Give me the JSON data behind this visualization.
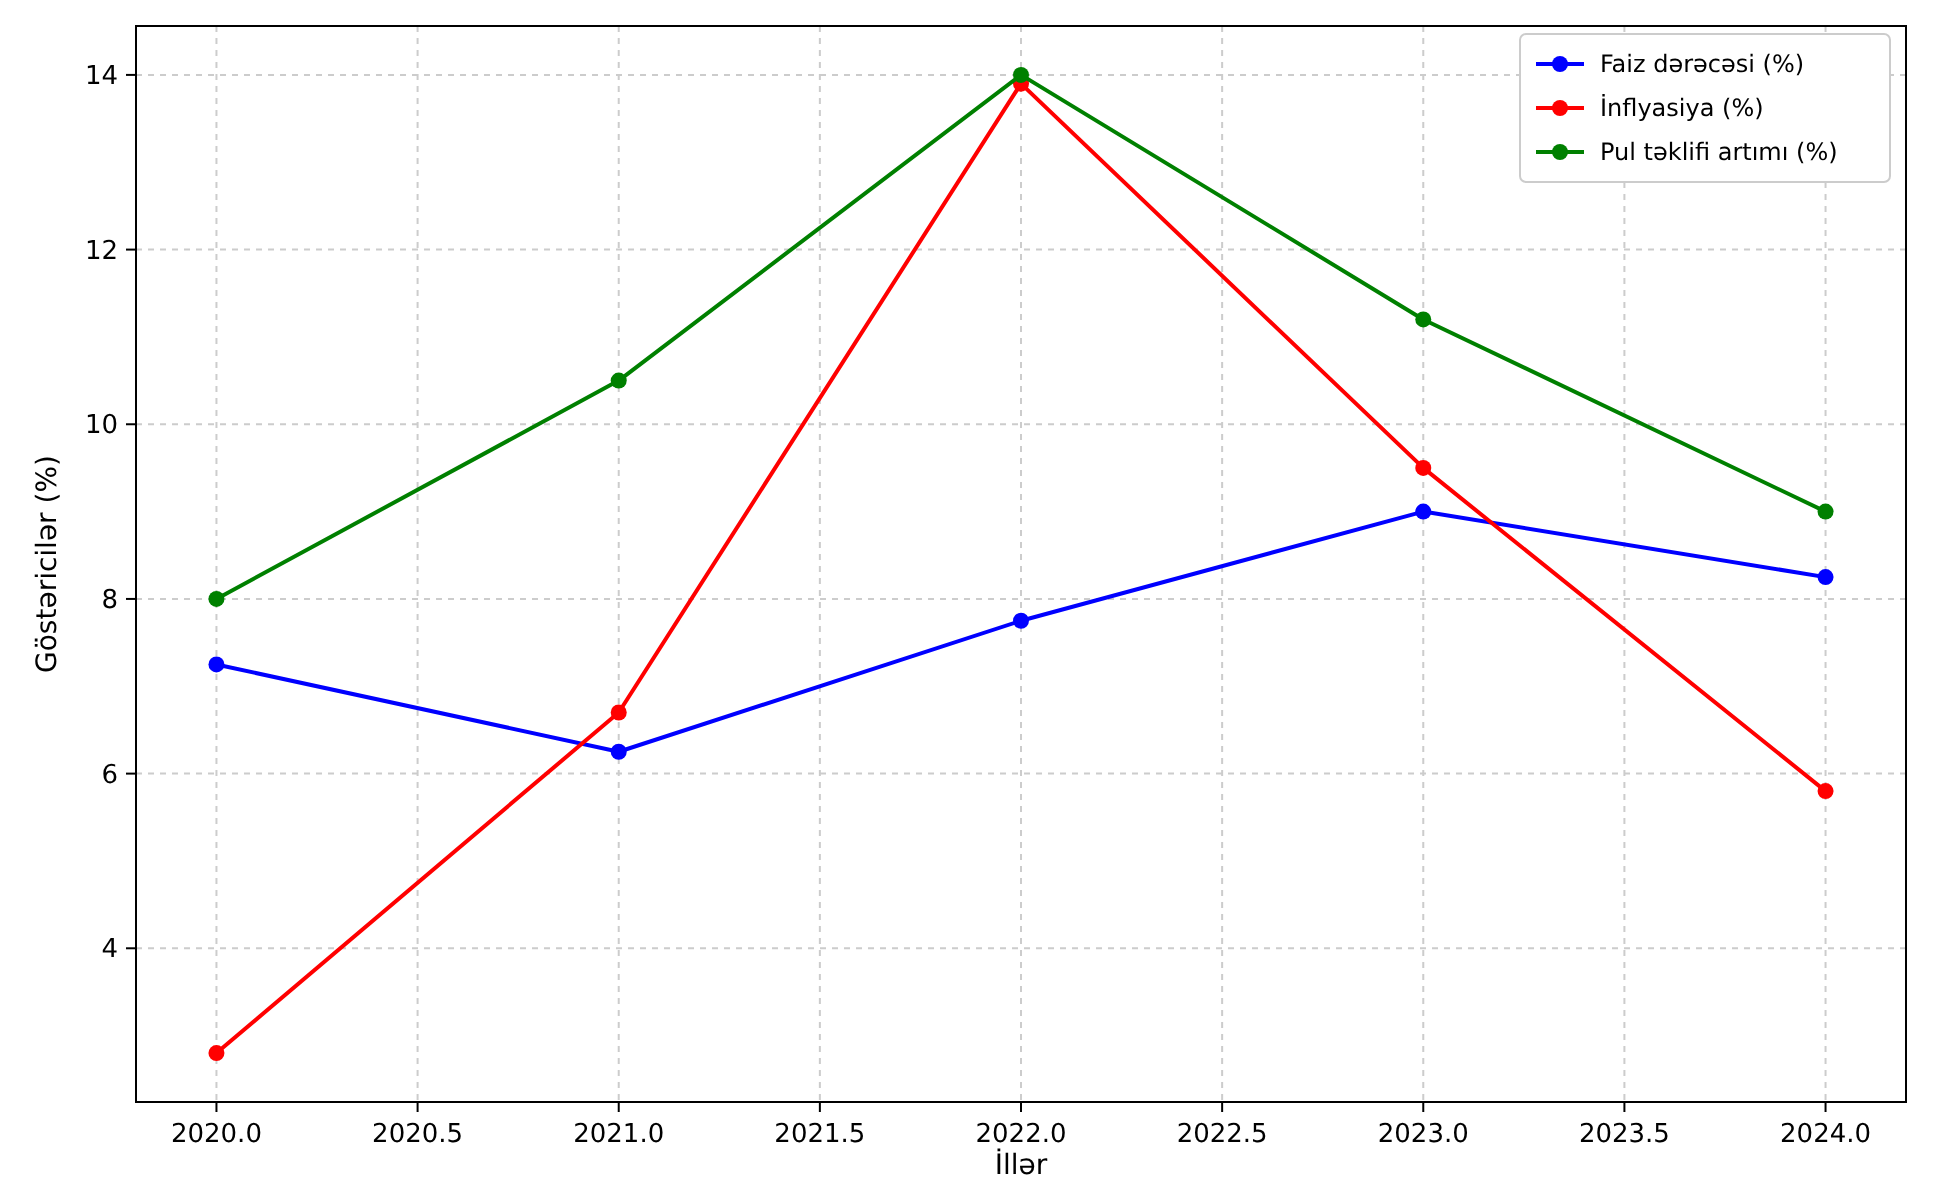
{
  "chart_data": {
    "type": "line",
    "xlabel": "İllər",
    "ylabel": "Göstəricilər (%)",
    "x": [
      2020,
      2021,
      2022,
      2023,
      2024
    ],
    "series": [
      {
        "name": "Faiz dərəcəsi (%)",
        "color": "#0000ff",
        "values": [
          7.25,
          6.25,
          7.75,
          9.0,
          8.25
        ]
      },
      {
        "name": "İnflyasiya (%)",
        "color": "#ff0000",
        "values": [
          2.8,
          6.7,
          13.9,
          9.5,
          5.8
        ]
      },
      {
        "name": "Pul təklifi artımı (%)",
        "color": "#008000",
        "values": [
          8.0,
          10.5,
          14.0,
          11.2,
          9.0
        ]
      }
    ],
    "xlim": [
      2019.8,
      2024.2
    ],
    "ylim": [
      2.24,
      14.56
    ],
    "xticks": [
      {
        "value": 2020,
        "label": "2020.0"
      },
      {
        "value": 2020.5,
        "label": "2020.5"
      },
      {
        "value": 2021,
        "label": "2021.0"
      },
      {
        "value": 2021.5,
        "label": "2021.5"
      },
      {
        "value": 2022,
        "label": "2022.0"
      },
      {
        "value": 2022.5,
        "label": "2022.5"
      },
      {
        "value": 2023,
        "label": "2023.0"
      },
      {
        "value": 2023.5,
        "label": "2023.5"
      },
      {
        "value": 2024,
        "label": "2024.0"
      }
    ],
    "yticks": [
      4,
      6,
      8,
      10,
      12,
      14
    ],
    "grid": true,
    "legend": "top right",
    "marker": "circle",
    "line_style": "solid"
  }
}
